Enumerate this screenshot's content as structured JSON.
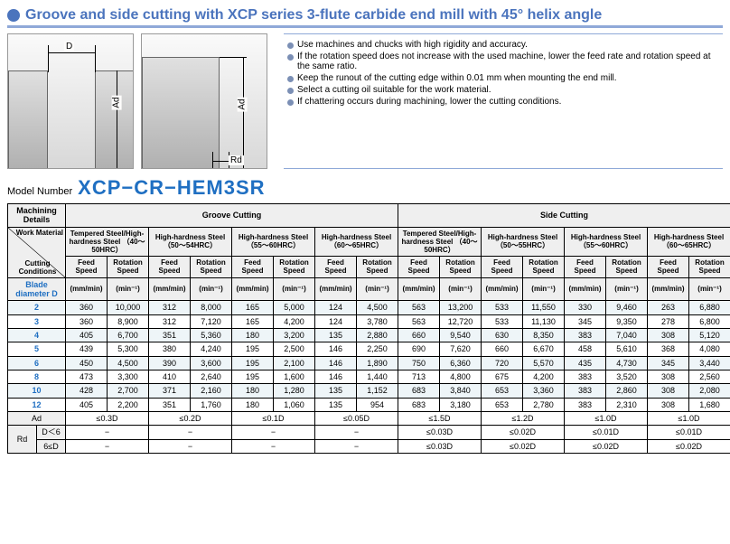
{
  "title": "Groove and side cutting with XCP series 3-flute carbide end mill with 45° helix angle",
  "dim": {
    "D": "D",
    "Ad": "Ad",
    "Rd": "Rd"
  },
  "notes": [
    "Use machines and chucks with high rigidity and accuracy.",
    "If the rotation speed does not increase with the used machine, lower the feed rate and rotation speed at the same ratio.",
    "Keep the runout of the cutting edge within 0.01 mm when mounting the end mill.",
    "Select a cutting oil suitable for the work material.",
    "If chattering occurs during machining, lower the cutting conditions."
  ],
  "model_label": "Model Number",
  "model_number": "XCP−CR−HEM3SR",
  "headers": {
    "machining_details": "Machining Details",
    "groove": "Groove Cutting",
    "side": "Side Cutting",
    "work_material": "Work Material",
    "cutting_conditions": "Cutting Conditions",
    "blade_diameter": "Blade\ndiameter D",
    "mat1": "Tempered Steel/High-hardness Steel\n（40～50HRC）",
    "mat2": "High-hardness Steel\n（50～54HRC）",
    "mat3": "High-hardness Steel\n（55～60HRC）",
    "mat4": "High-hardness Steel\n（60～65HRC）",
    "mat5": "Tempered Steel/High-hardness Steel\n（40～50HRC）",
    "mat6": "High-hardness Steel\n（50～55HRC）",
    "mat7": "High-hardness Steel\n（55～60HRC）",
    "mat8": "High-hardness Steel\n（60～65HRC）",
    "feed": "Feed Speed",
    "rot": "Rotation Speed",
    "feed_unit": "(mm/min)",
    "rot_unit": "(min⁻¹)"
  },
  "diameters": [
    "2",
    "3",
    "4",
    "5",
    "6",
    "8",
    "10",
    "12"
  ],
  "rows": [
    [
      "360",
      "10,000",
      "312",
      "8,000",
      "165",
      "5,000",
      "124",
      "4,500",
      "563",
      "13,200",
      "533",
      "11,550",
      "330",
      "9,460",
      "263",
      "6,880"
    ],
    [
      "360",
      "8,900",
      "312",
      "7,120",
      "165",
      "4,200",
      "124",
      "3,780",
      "563",
      "12,720",
      "533",
      "11,130",
      "345",
      "9,350",
      "278",
      "6,800"
    ],
    [
      "405",
      "6,700",
      "351",
      "5,360",
      "180",
      "3,200",
      "135",
      "2,880",
      "660",
      "9,540",
      "630",
      "8,350",
      "383",
      "7,040",
      "308",
      "5,120"
    ],
    [
      "439",
      "5,300",
      "380",
      "4,240",
      "195",
      "2,500",
      "146",
      "2,250",
      "690",
      "7,620",
      "660",
      "6,670",
      "458",
      "5,610",
      "368",
      "4,080"
    ],
    [
      "450",
      "4,500",
      "390",
      "3,600",
      "195",
      "2,100",
      "146",
      "1,890",
      "750",
      "6,360",
      "720",
      "5,570",
      "435",
      "4,730",
      "345",
      "3,440"
    ],
    [
      "473",
      "3,300",
      "410",
      "2,640",
      "195",
      "1,600",
      "146",
      "1,440",
      "713",
      "4,800",
      "675",
      "4,200",
      "383",
      "3,520",
      "308",
      "2,560"
    ],
    [
      "428",
      "2,700",
      "371",
      "2,160",
      "180",
      "1,280",
      "135",
      "1,152",
      "683",
      "3,840",
      "653",
      "3,360",
      "383",
      "2,860",
      "308",
      "2,080"
    ],
    [
      "405",
      "2,200",
      "351",
      "1,760",
      "180",
      "1,060",
      "135",
      "954",
      "683",
      "3,180",
      "653",
      "2,780",
      "383",
      "2,310",
      "308",
      "1,680"
    ]
  ],
  "ad_row": {
    "label": "Ad",
    "g": [
      "≤0.3D",
      "≤0.2D",
      "≤0.1D",
      "≤0.05D"
    ],
    "s": [
      "≤1.5D",
      "≤1.2D",
      "≤1.0D",
      "≤1.0D"
    ]
  },
  "rd_rows": {
    "label": "Rd",
    "r1_label": "D＜6",
    "r1_g": [
      "−",
      "−",
      "−",
      "−"
    ],
    "r1_s": [
      "≤0.03D",
      "≤0.02D",
      "≤0.01D",
      "≤0.01D"
    ],
    "r2_label": "6≤D",
    "r2_g": [
      "−",
      "−",
      "−",
      "−"
    ],
    "r2_s": [
      "≤0.03D",
      "≤0.02D",
      "≤0.02D",
      "≤0.02D"
    ]
  }
}
